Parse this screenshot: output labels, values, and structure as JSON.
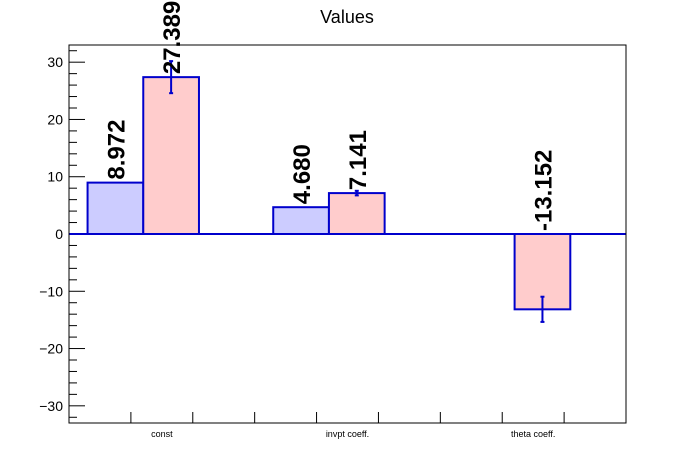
{
  "chart_data": {
    "type": "bar",
    "title": "Values",
    "xlabel": "",
    "ylabel": "",
    "categories": [
      "const",
      "invpt coeff.",
      "theta coeff."
    ],
    "ylim": [
      -33,
      33
    ],
    "yticks": [
      -30,
      -20,
      -10,
      0,
      10,
      20,
      30
    ],
    "grid": false,
    "series": [
      {
        "values": [
          8.972,
          4.68,
          null
        ],
        "errors": [
          0,
          0,
          0
        ],
        "labels": [
          "8.972",
          "4.680",
          ""
        ],
        "fill": "#ccccff",
        "stroke": "#0000cc"
      },
      {
        "values": [
          27.389,
          7.141,
          -13.152
        ],
        "errors": [
          2.8,
          0.4,
          2.2
        ],
        "labels": [
          "27.389",
          "7.141",
          "-13.152"
        ],
        "fill": "#ffcccc",
        "stroke": "#0000cc"
      }
    ]
  }
}
